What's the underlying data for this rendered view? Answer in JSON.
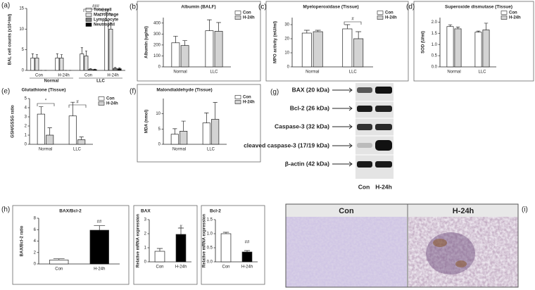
{
  "chart_data": [
    {
      "type": "bar",
      "panel": "(a)",
      "ylabel": "BAL cell counts (x10⁴/ml)",
      "categories": [
        "Con",
        "H-24h",
        "Con",
        "H-24h"
      ],
      "groups": [
        "Normal",
        "LLC"
      ],
      "series": [
        {
          "name": "Total cell",
          "color": "#ffffff",
          "values": [
            3,
            3,
            4,
            12
          ],
          "errors": [
            1,
            1,
            1.5,
            2
          ]
        },
        {
          "name": "Macrophage",
          "color": "#e0e0e0",
          "values": [
            3,
            3,
            3.5,
            10
          ],
          "errors": [
            0.8,
            0.8,
            1.2,
            1.5
          ]
        },
        {
          "name": "Lymphocyte",
          "color": "#808080",
          "values": [
            0,
            0,
            0.3,
            0.5
          ],
          "errors": [
            0,
            0,
            0.1,
            0.2
          ]
        },
        {
          "name": "Neutrophil",
          "color": "#000000",
          "values": [
            0,
            0,
            0.2,
            0.4
          ],
          "errors": [
            0,
            0,
            0.1,
            0.2
          ]
        }
      ],
      "ylim": [
        0,
        15
      ],
      "yticks": [
        0,
        5,
        10,
        15
      ],
      "annotations": [
        "###",
        "###"
      ]
    },
    {
      "type": "bar",
      "panel": "(b)",
      "title": "Albumin (BALF)",
      "ylabel": "Albumin (ug/ml)",
      "categories": [
        "Normal",
        "LLC"
      ],
      "series": [
        {
          "name": "Con",
          "color": "#ffffff",
          "values": [
            220,
            330
          ],
          "errors": [
            60,
            100
          ]
        },
        {
          "name": "H-24h",
          "color": "#d3d3d3",
          "values": [
            195,
            325
          ],
          "errors": [
            45,
            80
          ]
        }
      ],
      "ylim": [
        0,
        450
      ],
      "yticks": [
        0,
        100,
        200,
        300,
        400
      ]
    },
    {
      "type": "bar",
      "panel": "(c)",
      "title": "Myeloperoxidase (Tissue)",
      "ylabel": "MPO activity (mU/ml)",
      "categories": [
        "Normal",
        "LLC"
      ],
      "series": [
        {
          "name": "Con",
          "color": "#ffffff",
          "values": [
            24,
            27
          ],
          "errors": [
            2,
            3
          ]
        },
        {
          "name": "H-24h",
          "color": "#d3d3d3",
          "values": [
            25,
            20
          ],
          "errors": [
            1,
            5
          ]
        }
      ],
      "ylim": [
        0,
        35
      ],
      "yticks": [
        0,
        10,
        20,
        30
      ],
      "annotations": [
        "#"
      ]
    },
    {
      "type": "bar",
      "panel": "(d)",
      "title": "Superoxide dismutase (Tissue)",
      "ylabel": "SOD (U/ml)",
      "categories": [
        "Normal",
        "LLC"
      ],
      "series": [
        {
          "name": "Con",
          "color": "#ffffff",
          "values": [
            1.8,
            1.55
          ],
          "errors": [
            0.08,
            0.05
          ]
        },
        {
          "name": "H-24h",
          "color": "#d3d3d3",
          "values": [
            1.7,
            1.65
          ],
          "errors": [
            0.08,
            0.3
          ]
        }
      ],
      "ylim": [
        0,
        2.2
      ],
      "yticks": [
        {
          "value": 0,
          "label": "0.0"
        },
        0.5,
        {
          "value": 1,
          "label": "1.0"
        },
        1.5,
        {
          "value": 2,
          "label": "2.0"
        }
      ]
    },
    {
      "type": "bar",
      "panel": "(e)",
      "title": "Glutathione (Tissue)",
      "ylabel": "GSH/GSSG ratio",
      "categories": [
        "Normal",
        "LLC"
      ],
      "series": [
        {
          "name": "Con",
          "color": "#ffffff",
          "values": [
            3.3,
            3.1
          ],
          "errors": [
            0.8,
            1.5
          ]
        },
        {
          "name": "H-24h",
          "color": "#d3d3d3",
          "values": [
            1.0,
            0.5
          ],
          "errors": [
            0.8,
            0.3
          ]
        }
      ],
      "ylim": [
        0,
        5
      ],
      "yticks": [
        0,
        1,
        2,
        3,
        4,
        5
      ],
      "annotations": [
        "*",
        "#"
      ]
    },
    {
      "type": "bar",
      "panel": "(f)",
      "title": "Malondialdehyde (Tissue)",
      "ylabel": "MDA (nmol)",
      "categories": [
        "Normal",
        "LLC"
      ],
      "series": [
        {
          "name": "Con",
          "color": "#ffffff",
          "values": [
            3.3,
            7
          ],
          "errors": [
            1.8,
            3.3
          ]
        },
        {
          "name": "H-24h",
          "color": "#d3d3d3",
          "values": [
            4.3,
            8.2
          ],
          "errors": [
            3.3,
            5.5
          ]
        }
      ],
      "ylim": [
        0,
        15
      ],
      "yticks": [
        0,
        5,
        10
      ]
    },
    {
      "type": "bar",
      "panel": "(h)",
      "title": "BAX/Bcl-2",
      "ylabel": "BAX/Bcl-2 ratio",
      "categories": [
        "Con",
        "H-24h"
      ],
      "values": [
        0.7,
        5.9
      ],
      "errors": [
        0.2,
        0.8
      ],
      "colors": [
        "#ffffff",
        "#000000"
      ],
      "ylim": [
        0,
        8
      ],
      "yticks": [
        0,
        2,
        4,
        6,
        8
      ],
      "annotations": [
        "##"
      ]
    },
    {
      "type": "bar",
      "title": "BAX",
      "ylabel": "Relative mRNA expression",
      "categories": [
        "Con",
        "H-24h"
      ],
      "values": [
        0.75,
        1.95
      ],
      "errors": [
        0.2,
        0.45
      ],
      "colors": [
        "#ffffff",
        "#000000"
      ],
      "ylim": [
        0,
        3
      ],
      "yticks": [
        0,
        1,
        2,
        3
      ],
      "annotations": [
        "#"
      ]
    },
    {
      "type": "bar",
      "title": "Bcl-2",
      "ylabel": "Relative mRNA expression",
      "categories": [
        "Con",
        "H-24h"
      ],
      "values": [
        1.0,
        0.35
      ],
      "errors": [
        0.05,
        0.05
      ],
      "colors": [
        "#ffffff",
        "#000000"
      ],
      "ylim": [
        0,
        1.5
      ],
      "yticks": [
        {
          "value": 0,
          "label": "0.0"
        },
        0.5,
        {
          "value": 1,
          "label": "1.0"
        },
        1.5
      ],
      "annotations": [
        "##"
      ]
    }
  ],
  "blot": {
    "panel": "(g)",
    "labels": [
      "BAX (20 kDa)",
      "Bcl-2 (26 kDa)",
      "Caspase-3 (32 kDa)",
      "cleaved caspase-3 (17/19 kDa)",
      "β-actin (42 kDa)"
    ],
    "lanes": [
      "Con",
      "H-24h"
    ]
  },
  "micrograph": {
    "panel": "(i)",
    "labels": [
      "Con",
      "H-24h"
    ]
  }
}
